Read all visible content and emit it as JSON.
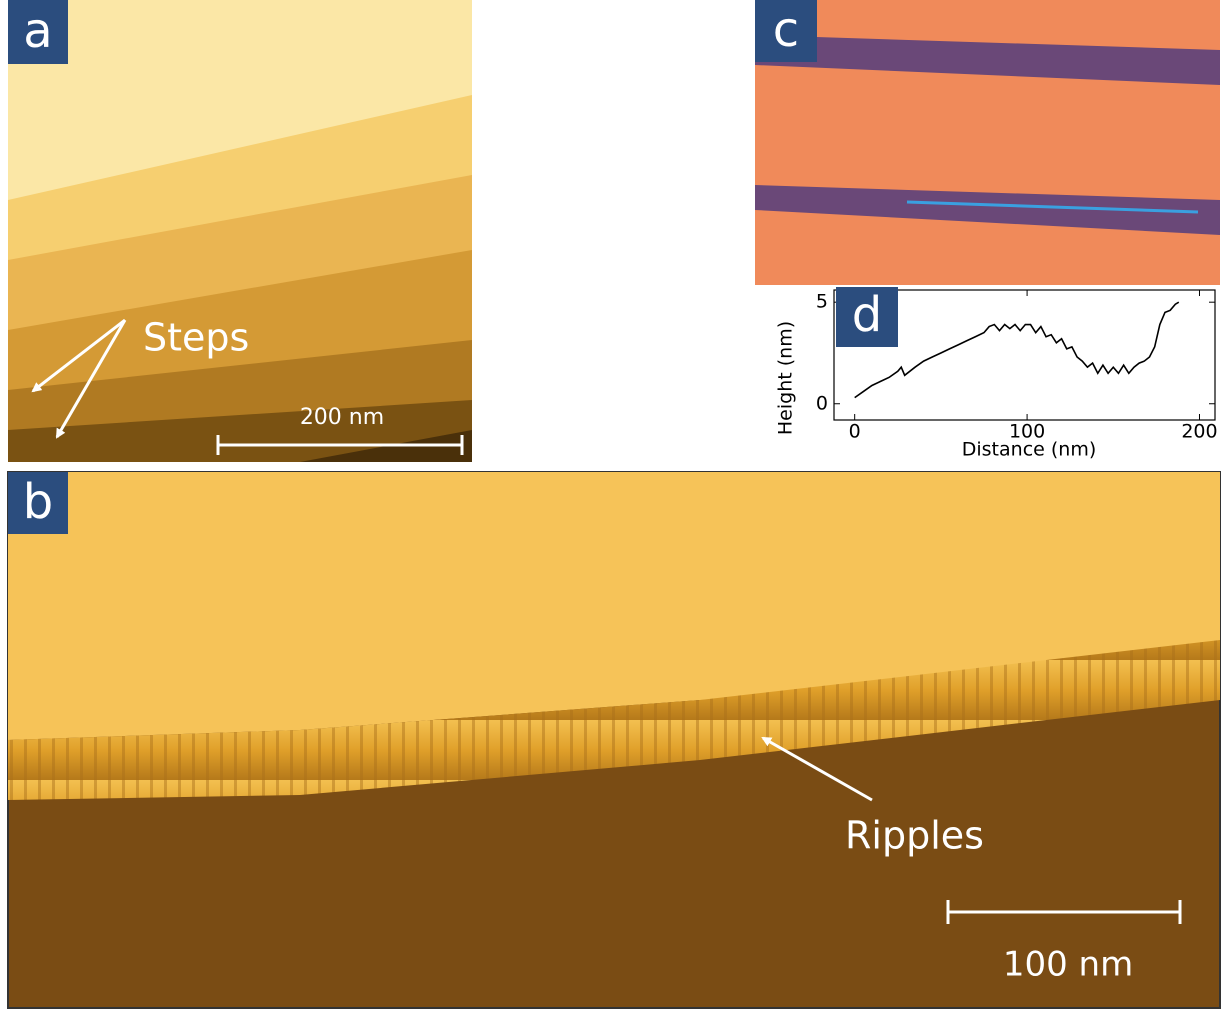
{
  "panels": {
    "a": {
      "label": "a",
      "annotation": "Steps",
      "scale_bar": "200 nm"
    },
    "b": {
      "label": "b",
      "annotation": "Ripples",
      "scale_bar": "100 nm"
    },
    "c": {
      "label": "c"
    },
    "d": {
      "label": "d"
    }
  },
  "chart_data": {
    "type": "line",
    "xlabel": "Distance (nm)",
    "ylabel": "Height (nm)",
    "x": [
      0,
      5,
      10,
      15,
      20,
      25,
      27,
      29,
      35,
      40,
      45,
      50,
      55,
      60,
      65,
      70,
      75,
      78,
      81,
      84,
      87,
      90,
      93,
      96,
      99,
      102,
      105,
      108,
      111,
      114,
      117,
      120,
      123,
      126,
      129,
      132,
      135,
      138,
      141,
      144,
      147,
      150,
      153,
      156,
      159,
      162,
      165,
      168,
      171,
      174,
      177,
      180,
      183,
      186,
      188
    ],
    "series": [
      {
        "color": "#000000",
        "values": [
          0.3,
          0.6,
          0.9,
          1.1,
          1.3,
          1.6,
          1.8,
          1.4,
          1.8,
          2.1,
          2.3,
          2.5,
          2.7,
          2.9,
          3.1,
          3.3,
          3.5,
          3.8,
          3.9,
          3.6,
          3.9,
          3.7,
          3.9,
          3.6,
          3.9,
          3.9,
          3.5,
          3.8,
          3.3,
          3.4,
          3.0,
          3.2,
          2.7,
          2.8,
          2.3,
          2.1,
          1.8,
          2.0,
          1.5,
          1.9,
          1.5,
          1.8,
          1.5,
          1.9,
          1.5,
          1.8,
          2.0,
          2.1,
          2.3,
          2.8,
          3.9,
          4.5,
          4.6,
          4.9,
          5.0
        ]
      }
    ],
    "xlim": [
      -12,
      209
    ],
    "ylim": [
      -0.8,
      5.6
    ],
    "xticks": [
      0,
      100,
      200
    ],
    "yticks": [
      0,
      5
    ]
  }
}
